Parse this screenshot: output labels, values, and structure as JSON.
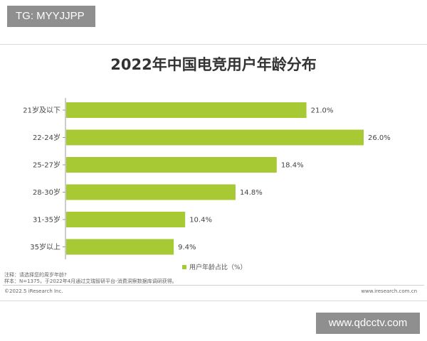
{
  "watermark_top": "TG: MYYJJPP",
  "watermark_bottom": "www.qdcctv.com",
  "legend_label": "用户年龄占比（%）",
  "notes": [
    "注释：请选择您的周岁年龄?",
    "样本：N=1375，于2022年4月通过艾瑞智研平台-消费洞察数据库调研获得。"
  ],
  "copyright": "©2022.5 iResearch Inc.",
  "site": "www.iresearch.com.cn",
  "colors": {
    "bar": "#a7c934",
    "axis": "#999999"
  },
  "chart_data": {
    "type": "bar",
    "orientation": "horizontal",
    "title": "2022年中国电竞用户年龄分布",
    "categories": [
      "21岁及以下",
      "22-24岁",
      "25-27岁",
      "28-30岁",
      "31-35岁",
      "35岁以上"
    ],
    "values": [
      21.0,
      26.0,
      18.4,
      14.8,
      10.4,
      9.4
    ],
    "value_labels": [
      "21.0%",
      "26.0%",
      "18.4%",
      "14.8%",
      "10.4%",
      "9.4%"
    ],
    "series": [
      {
        "name": "用户年龄占比（%）",
        "values": [
          21.0,
          26.0,
          18.4,
          14.8,
          10.4,
          9.4
        ]
      }
    ],
    "xlim": [
      0,
      26
    ],
    "grid": false,
    "legend": "bottom"
  }
}
